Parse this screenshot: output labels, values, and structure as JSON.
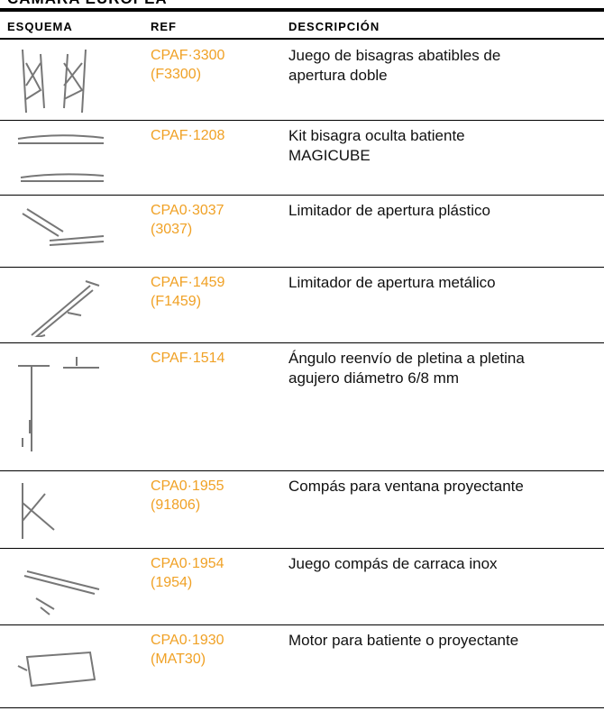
{
  "title": "CÁMARA EUROPEA",
  "table": {
    "headers": [
      "ESQUEMA",
      "REF",
      "DESCRIPCIÓN"
    ],
    "rows": [
      {
        "ref": [
          "CPAF·3300",
          "(F3300)"
        ],
        "description": [
          "Juego de bisagras abatibles de",
          "apertura doble"
        ]
      },
      {
        "ref": [
          "CPAF·1208"
        ],
        "description": [
          "Kit bisagra oculta batiente",
          "MAGICUBE"
        ]
      },
      {
        "ref": [
          "CPA0·3037",
          "(3037)"
        ],
        "description": [
          "Limitador de apertura plástico"
        ]
      },
      {
        "ref": [
          "CPAF·1459",
          "(F1459)"
        ],
        "description": [
          "Limitador de apertura metálico"
        ]
      },
      {
        "ref": [
          "CPAF·1514"
        ],
        "description": [
          "Ángulo reenvío de pletina a pletina",
          "agujero diámetro 6/8 mm"
        ]
      },
      {
        "ref": [
          "CPA0·1955",
          "(91806)"
        ],
        "description": [
          "Compás para ventana proyectante"
        ]
      },
      {
        "ref": [
          "CPA0·1954",
          "(1954)"
        ],
        "description": [
          "Juego compás de carraca inox"
        ]
      },
      {
        "ref": [
          "CPA0·1930",
          "(MAT30)"
        ],
        "description": [
          "Motor para batiente o proyectante"
        ]
      }
    ]
  }
}
